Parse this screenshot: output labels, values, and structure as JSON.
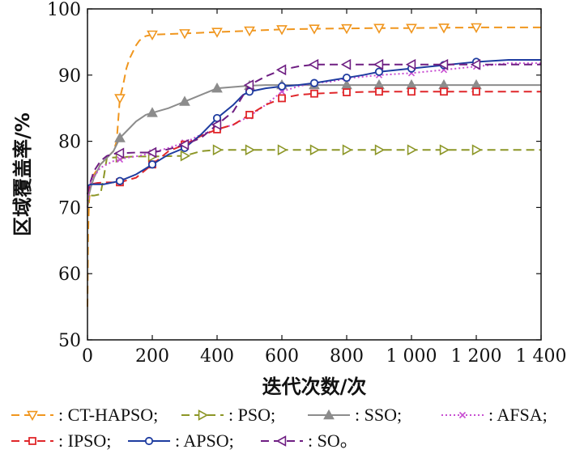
{
  "chart_data": {
    "type": "line",
    "xlabel": "迭代次数/次",
    "ylabel": "区域覆盖率/%",
    "xlim": [
      0,
      1400
    ],
    "ylim": [
      50,
      100
    ],
    "xticks": [
      0,
      200,
      400,
      600,
      800,
      1000,
      1200,
      1400
    ],
    "xtick_labels": [
      "0",
      "200",
      "400",
      "600",
      "800",
      "1 000",
      "1 200",
      "1 400"
    ],
    "yticks": [
      50,
      60,
      70,
      80,
      90,
      100
    ],
    "ytick_labels": [
      "50",
      "60",
      "70",
      "80",
      "90",
      "100"
    ],
    "grid": false,
    "legend_position": "bottom",
    "series": [
      {
        "name": ": CT-HAPSO;",
        "color": "#f0961e",
        "dash": "10,6",
        "marker": "triangle-down",
        "x": [
          0,
          2,
          5,
          10,
          20,
          40,
          60,
          80,
          90,
          100,
          110,
          120,
          130,
          140,
          150,
          160,
          170,
          180,
          200,
          250,
          300,
          350,
          400,
          500,
          600,
          700,
          800,
          900,
          1000,
          1100,
          1200,
          1300,
          1400
        ],
        "y": [
          55,
          66,
          71,
          73.5,
          75,
          76.5,
          77.5,
          78.5,
          80,
          86.5,
          88.5,
          91,
          92.5,
          93.5,
          94.5,
          95.2,
          95.6,
          95.9,
          96.1,
          96.2,
          96.3,
          96.4,
          96.5,
          96.7,
          96.9,
          97,
          97.05,
          97.1,
          97.1,
          97.15,
          97.2,
          97.2,
          97.2
        ],
        "marker_x": [
          100,
          200,
          300,
          400,
          500,
          600,
          700,
          800,
          900,
          1000,
          1100,
          1200
        ]
      },
      {
        "name": ": PSO;",
        "color": "#8c9626",
        "dash": "10,6",
        "marker": "triangle-right",
        "x": [
          0,
          5,
          10,
          20,
          40,
          50,
          60,
          100,
          150,
          200,
          300,
          350,
          400,
          500,
          600,
          700,
          800,
          900,
          1000,
          1100,
          1200,
          1300,
          1400
        ],
        "y": [
          70,
          71.5,
          71.8,
          71.8,
          72,
          74.5,
          77.5,
          77.6,
          77.7,
          77.7,
          77.8,
          78.5,
          78.7,
          78.7,
          78.7,
          78.7,
          78.7,
          78.7,
          78.7,
          78.7,
          78.7,
          78.7,
          78.7
        ],
        "marker_x": [
          100,
          200,
          300,
          400,
          500,
          600,
          700,
          800,
          900,
          1000,
          1100,
          1200
        ]
      },
      {
        "name": ": SSO;",
        "color": "#8c8c8c",
        "dash": "",
        "marker": "triangle-up",
        "x": [
          0,
          5,
          10,
          20,
          40,
          60,
          80,
          100,
          130,
          150,
          180,
          200,
          250,
          300,
          350,
          400,
          450,
          500,
          550,
          600,
          700,
          800,
          900,
          1000,
          1100,
          1200,
          1300,
          1400
        ],
        "y": [
          71,
          72,
          73,
          74.5,
          76.5,
          77.5,
          78.5,
          80.5,
          82,
          83,
          84,
          84.3,
          85,
          86,
          87,
          88,
          88.2,
          88.4,
          88.5,
          88.5,
          88.5,
          88.5,
          88.5,
          88.5,
          88.5,
          88.5,
          88.5,
          88.5
        ],
        "marker_x": [
          100,
          200,
          300,
          400,
          500,
          600,
          700,
          800,
          900,
          1000,
          1100,
          1200
        ]
      },
      {
        "name": ": AFSA;",
        "color": "#c84fd2",
        "dash": "2,3",
        "marker": "cross",
        "x": [
          0,
          5,
          10,
          40,
          80,
          120,
          160,
          200,
          250,
          300,
          350,
          400,
          450,
          500,
          550,
          600,
          650,
          700,
          750,
          800,
          900,
          1000,
          1100,
          1200,
          1300,
          1400
        ],
        "y": [
          70,
          72.5,
          74,
          76,
          77,
          77.5,
          77.8,
          78.3,
          79,
          79.8,
          81,
          81.8,
          82.5,
          83.8,
          85.5,
          87.5,
          88.3,
          88.8,
          89,
          89.5,
          90,
          90.3,
          90.8,
          91.3,
          91.8,
          91.8
        ],
        "marker_x": [
          100,
          200,
          300,
          400,
          500,
          600,
          700,
          800,
          900,
          1000,
          1100,
          1200
        ]
      },
      {
        "name": ": IPSO;",
        "color": "#e0262a",
        "dash": "10,6",
        "marker": "square",
        "x": [
          0,
          5,
          10,
          30,
          60,
          100,
          150,
          200,
          250,
          300,
          350,
          400,
          450,
          500,
          550,
          600,
          650,
          700,
          750,
          800,
          900,
          1000,
          1100,
          1200,
          1300,
          1400
        ],
        "y": [
          72,
          73,
          73.5,
          73.7,
          73.8,
          73.8,
          74.5,
          76.5,
          78.5,
          79.5,
          80.8,
          81.8,
          82.5,
          84,
          85.5,
          86.5,
          87,
          87.2,
          87.3,
          87.4,
          87.5,
          87.5,
          87.5,
          87.5,
          87.5,
          87.5
        ],
        "marker_x": [
          100,
          200,
          300,
          400,
          500,
          600,
          700,
          800,
          900,
          1000,
          1100,
          1200
        ]
      },
      {
        "name": ": APSO;",
        "color": "#1e3ca0",
        "dash": "",
        "marker": "circle",
        "x": [
          0,
          5,
          10,
          50,
          100,
          150,
          200,
          250,
          300,
          350,
          400,
          450,
          480,
          500,
          550,
          600,
          650,
          700,
          750,
          800,
          850,
          900,
          1000,
          1100,
          1200,
          1300,
          1400
        ],
        "y": [
          73.2,
          73.4,
          73.5,
          73.5,
          74,
          75,
          76.5,
          78,
          79,
          81,
          83.5,
          85.5,
          87,
          87.5,
          88,
          88.3,
          88.5,
          88.8,
          89.2,
          89.6,
          90,
          90.5,
          91,
          91.5,
          92,
          92.3,
          92.3
        ],
        "marker_x": [
          100,
          200,
          300,
          400,
          500,
          600,
          700,
          800,
          900,
          1000,
          1100,
          1200
        ]
      },
      {
        "name": ": SO。",
        "color": "#6e1e82",
        "dash": "10,6",
        "marker": "triangle-left",
        "x": [
          0,
          5,
          10,
          20,
          40,
          60,
          80,
          100,
          150,
          200,
          250,
          300,
          350,
          400,
          450,
          500,
          550,
          600,
          650,
          700,
          800,
          900,
          1000,
          1100,
          1200,
          1300,
          1400
        ],
        "y": [
          72,
          73.5,
          74,
          75.5,
          77,
          77.8,
          78.1,
          78.2,
          78.3,
          78.3,
          78.8,
          79.5,
          80.5,
          82.5,
          84.5,
          88.5,
          89.8,
          90.8,
          91.3,
          91.6,
          91.6,
          91.6,
          91.6,
          91.6,
          91.6,
          91.6,
          91.6
        ],
        "marker_x": [
          100,
          200,
          300,
          400,
          500,
          600,
          700,
          800,
          900,
          1000,
          1100,
          1200
        ]
      }
    ]
  }
}
